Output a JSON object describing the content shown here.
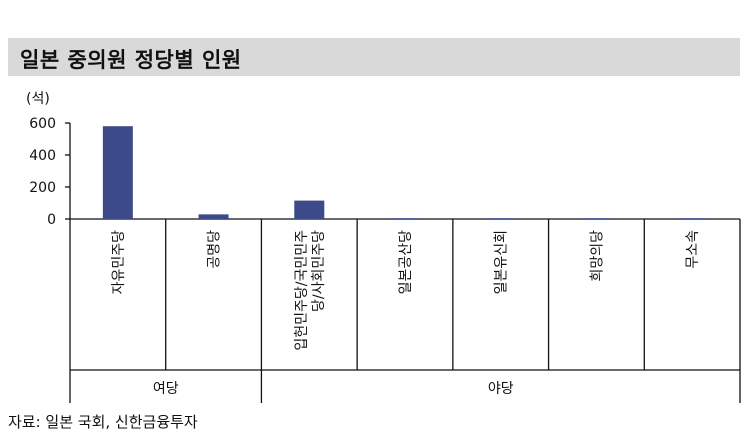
{
  "title": "일본 중의원 정당별 인원",
  "source": "자료: 일본 국회, 신한금융투자",
  "chart_data": {
    "type": "bar",
    "unit_label": "(석)",
    "categories": [
      "자유민주당",
      "공명당",
      "입헌민주당/국민민주당/사회민주당",
      "일본공산당",
      "일본유신회",
      "희망의당",
      "무소속"
    ],
    "category_lines": [
      [
        "자유민주당"
      ],
      [
        "공명당"
      ],
      [
        "입헌민주당/국민민주",
        "당/사회민주당"
      ],
      [
        "일본공산당"
      ],
      [
        "일본유신회"
      ],
      [
        "희망의당"
      ],
      [
        "무소속"
      ]
    ],
    "values": [
      580,
      29,
      115,
      2,
      1,
      1,
      1
    ],
    "ylim": [
      0,
      600
    ],
    "yticks": [
      0,
      200,
      400,
      600
    ],
    "groups": [
      {
        "label": "여당",
        "start": 0,
        "end": 1
      },
      {
        "label": "야당",
        "start": 2,
        "end": 6
      }
    ],
    "bar_color": "#3d4a8a"
  }
}
